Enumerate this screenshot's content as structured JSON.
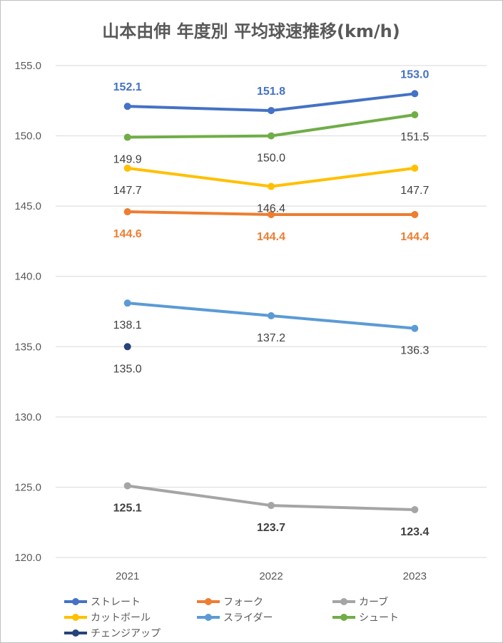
{
  "chart_data": {
    "type": "line",
    "title": "山本由伸 年度別 平均球速推移(km/h)",
    "xlabel": "",
    "ylabel": "",
    "categories": [
      "2021",
      "2022",
      "2023"
    ],
    "ylim": [
      120,
      155
    ],
    "yticks": [
      "120.0",
      "125.0",
      "130.0",
      "135.0",
      "140.0",
      "145.0",
      "150.0",
      "155.0"
    ],
    "grid": true,
    "legend_position": "bottom",
    "series": [
      {
        "name": "ストレート",
        "values": [
          152.1,
          151.8,
          153.0
        ],
        "labels": [
          "152.1",
          "151.8",
          "153.0"
        ],
        "color": "#4472c4",
        "label_color": "#4472c4",
        "label_bold": true,
        "label_pos": "above"
      },
      {
        "name": "フォーク",
        "values": [
          144.6,
          144.4,
          144.4
        ],
        "labels": [
          "144.6",
          "144.4",
          "144.4"
        ],
        "color": "#ed7d31",
        "label_color": "#ed7d31",
        "label_bold": true,
        "label_pos": "below"
      },
      {
        "name": "カーブ",
        "values": [
          125.1,
          123.7,
          123.4
        ],
        "labels": [
          "125.1",
          "123.7",
          "123.4"
        ],
        "color": "#a5a5a5",
        "label_color": "#404040",
        "label_bold": true,
        "label_pos": "below"
      },
      {
        "name": "カットボール",
        "values": [
          147.7,
          146.4,
          147.7
        ],
        "labels": [
          "147.7",
          "146.4",
          "147.7"
        ],
        "color": "#ffc000",
        "label_color": "#404040",
        "label_bold": false,
        "label_pos": "below"
      },
      {
        "name": "スライダー",
        "values": [
          138.1,
          137.2,
          136.3
        ],
        "labels": [
          "138.1",
          "137.2",
          "136.3"
        ],
        "color": "#5b9bd5",
        "label_color": "#404040",
        "label_bold": false,
        "label_pos": "below"
      },
      {
        "name": "シュート",
        "values": [
          149.9,
          150.0,
          151.5
        ],
        "labels": [
          "149.9",
          "150.0",
          "151.5"
        ],
        "color": "#70ad47",
        "label_color": "#404040",
        "label_bold": false,
        "label_pos": "below"
      },
      {
        "name": "チェンジアップ",
        "values": [
          135.0,
          null,
          null
        ],
        "labels": [
          "135.0",
          null,
          null
        ],
        "color": "#264478",
        "label_color": "#404040",
        "label_bold": false,
        "label_pos": "below"
      }
    ]
  }
}
